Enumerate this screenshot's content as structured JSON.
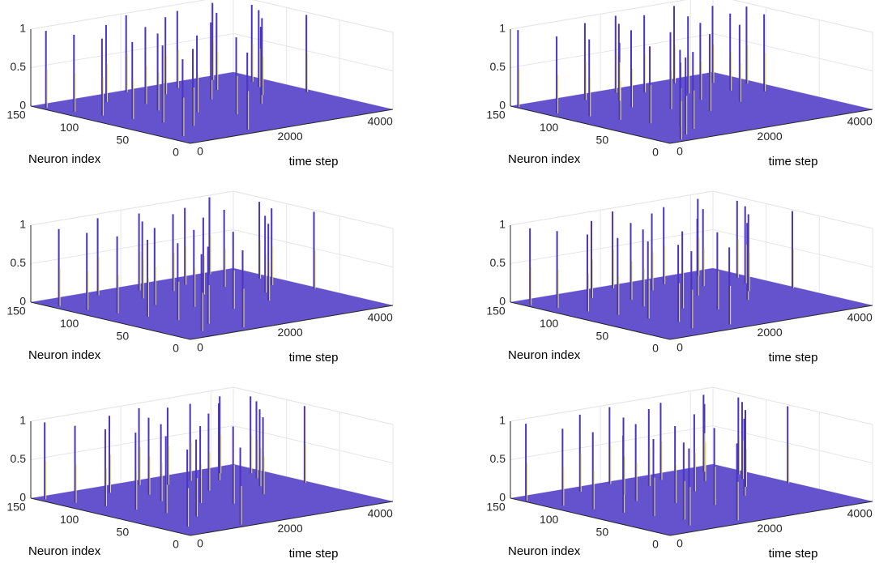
{
  "chart_data": [
    {
      "type": "spike3d",
      "xlabel": "time step",
      "ylabel": "Neuron index",
      "color": "#4a34c4",
      "xlim": [
        0,
        4500
      ],
      "xticks": [
        0,
        2000,
        4000
      ],
      "ylim": [
        0,
        150
      ],
      "yticks": [
        0,
        50,
        100,
        150
      ],
      "zlim": [
        0,
        1
      ],
      "zticks": [
        0,
        0.5,
        1
      ],
      "x": [
        100,
        250,
        400,
        600,
        800,
        1000,
        1200,
        1400,
        1600,
        1800,
        2000,
        2200,
        2400,
        2700,
        2900,
        3100,
        3300,
        3600,
        3800,
        4000,
        4200,
        4350,
        300,
        1500
      ],
      "y": [
        140,
        120,
        100,
        80,
        60,
        40,
        130,
        90,
        110,
        70,
        145,
        50,
        125,
        95,
        135,
        65,
        115,
        85,
        140,
        105,
        120,
        75,
        20,
        10
      ],
      "values": [
        1,
        1,
        1,
        1,
        1,
        1,
        1,
        1,
        1,
        1,
        1,
        1,
        1,
        1,
        1,
        1,
        1,
        1,
        1,
        1,
        1,
        1,
        1,
        1
      ]
    },
    {
      "type": "spike3d",
      "xlabel": "time step",
      "ylabel": "Neuron index",
      "color": "#4a34c4",
      "xlim": [
        0,
        4500
      ],
      "xticks": [
        0,
        2000,
        4000
      ],
      "ylim": [
        0,
        150
      ],
      "yticks": [
        0,
        50,
        100,
        150
      ],
      "zlim": [
        0,
        1
      ],
      "zticks": [
        0,
        0.5,
        1
      ],
      "x": [
        50,
        200,
        450,
        650,
        850,
        1050,
        1300,
        1500,
        1700,
        1900,
        2100,
        2300,
        2500,
        2800,
        3000,
        3200,
        3400,
        3700,
        3900,
        4100,
        4300,
        700,
        1100,
        350
      ],
      "y": [
        145,
        115,
        95,
        75,
        55,
        35,
        135,
        100,
        120,
        80,
        140,
        60,
        130,
        90,
        110,
        70,
        140,
        100,
        125,
        85,
        110,
        15,
        25,
        5
      ],
      "values": [
        1,
        1,
        1,
        1,
        1,
        1,
        1,
        1,
        1,
        1,
        1,
        1,
        1,
        1,
        1,
        1,
        1,
        1,
        1,
        1,
        1,
        1,
        1,
        1
      ]
    },
    {
      "type": "spike3d",
      "xlabel": "time step",
      "ylabel": "Neuron index",
      "color": "#4a34c4",
      "xlim": [
        0,
        4500
      ],
      "xticks": [
        0,
        2000,
        4000
      ],
      "ylim": [
        0,
        150
      ],
      "yticks": [
        0,
        50,
        100,
        150
      ],
      "zlim": [
        0,
        1
      ],
      "zticks": [
        0,
        0.5,
        1
      ],
      "x": [
        150,
        300,
        500,
        700,
        900,
        1100,
        1250,
        1450,
        1650,
        1850,
        2050,
        2250,
        2450,
        2650,
        2950,
        3150,
        3350,
        3550,
        3850,
        4050,
        4250,
        4400,
        600,
        1350
      ],
      "y": [
        130,
        110,
        90,
        70,
        50,
        30,
        140,
        95,
        115,
        75,
        135,
        55,
        120,
        100,
        130,
        60,
        110,
        80,
        145,
        95,
        115,
        70,
        15,
        8
      ],
      "values": [
        1,
        1,
        1,
        1,
        1,
        1,
        1,
        1,
        1,
        1,
        1,
        1,
        1,
        1,
        1,
        1,
        1,
        1,
        1,
        1,
        1,
        1,
        1,
        1
      ]
    },
    {
      "type": "spike3d",
      "xlabel": "time step",
      "ylabel": "Neuron index",
      "color": "#4a34c4",
      "xlim": [
        0,
        4500
      ],
      "xticks": [
        0,
        2000,
        4000
      ],
      "ylim": [
        0,
        150
      ],
      "yticks": [
        0,
        50,
        100,
        150
      ],
      "zlim": [
        0,
        1
      ],
      "zticks": [
        0,
        0.5,
        1
      ],
      "x": [
        80,
        280,
        480,
        680,
        880,
        1080,
        1280,
        1480,
        1680,
        1880,
        2080,
        2280,
        2480,
        2780,
        2980,
        3180,
        3380,
        3680,
        3880,
        4080,
        4280,
        4420,
        900,
        1600
      ],
      "y": [
        135,
        118,
        98,
        78,
        58,
        38,
        128,
        88,
        108,
        68,
        142,
        52,
        122,
        92,
        132,
        62,
        112,
        82,
        138,
        102,
        118,
        72,
        18,
        12
      ],
      "values": [
        1,
        1,
        1,
        1,
        1,
        1,
        1,
        1,
        1,
        1,
        1,
        1,
        1,
        1,
        1,
        1,
        1,
        1,
        1,
        1,
        1,
        1,
        1,
        1
      ]
    },
    {
      "type": "spike3d",
      "xlabel": "time step",
      "ylabel": "Neuron index",
      "color": "#4a34c4",
      "xlim": [
        0,
        4500
      ],
      "xticks": [
        0,
        2000,
        4000
      ],
      "ylim": [
        0,
        150
      ],
      "yticks": [
        0,
        50,
        100,
        150
      ],
      "zlim": [
        0,
        1
      ],
      "zticks": [
        0,
        0.5,
        1
      ],
      "x": [
        120,
        320,
        520,
        720,
        920,
        1120,
        1320,
        1520,
        1720,
        1920,
        2120,
        2320,
        2520,
        2720,
        3020,
        3220,
        3420,
        3620,
        3820,
        4020,
        4220,
        4380,
        450,
        1250
      ],
      "y": [
        142,
        122,
        102,
        82,
        62,
        42,
        132,
        92,
        112,
        72,
        138,
        58,
        128,
        98,
        128,
        68,
        118,
        88,
        134,
        108,
        122,
        78,
        22,
        6
      ],
      "values": [
        1,
        1,
        1,
        1,
        1,
        1,
        1,
        1,
        1,
        1,
        1,
        1,
        1,
        1,
        1,
        1,
        1,
        1,
        1,
        1,
        1,
        1,
        1,
        1
      ]
    },
    {
      "type": "spike3d",
      "xlabel": "time step",
      "ylabel": "Neuron index",
      "color": "#4a34c4",
      "xlim": [
        0,
        4500
      ],
      "xticks": [
        0,
        2000,
        4000
      ],
      "ylim": [
        0,
        150
      ],
      "yticks": [
        0,
        50,
        100,
        150
      ],
      "zlim": [
        0,
        1
      ],
      "zticks": [
        0,
        0.5,
        1
      ],
      "x": [
        60,
        260,
        460,
        660,
        860,
        1060,
        1260,
        1460,
        1660,
        1860,
        2060,
        2260,
        2460,
        2760,
        2960,
        3160,
        3460,
        3660,
        3960,
        4060,
        4260,
        4410,
        800,
        1700
      ],
      "y": [
        138,
        112,
        92,
        72,
        52,
        32,
        138,
        94,
        114,
        74,
        144,
        54,
        124,
        94,
        134,
        64,
        114,
        84,
        136,
        104,
        116,
        76,
        16,
        9
      ],
      "values": [
        1,
        1,
        1,
        1,
        1,
        1,
        1,
        1,
        1,
        1,
        1,
        1,
        1,
        1,
        1,
        1,
        1,
        1,
        1,
        1,
        1,
        1,
        1,
        1
      ]
    }
  ]
}
